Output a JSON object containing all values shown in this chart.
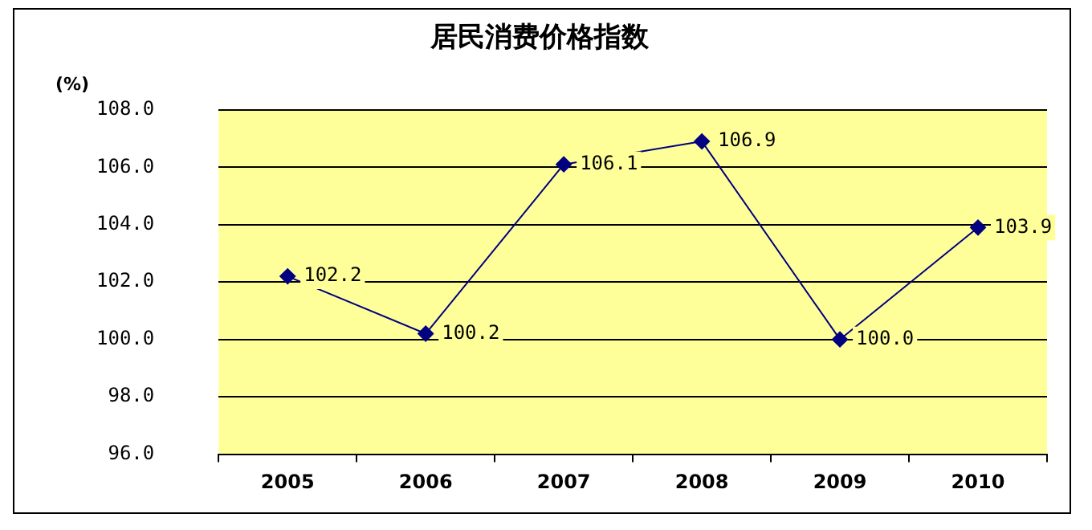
{
  "chart_data": {
    "type": "line",
    "title": "居民消费价格指数",
    "ylabel": "(%)",
    "categories": [
      "2005",
      "2006",
      "2007",
      "2008",
      "2009",
      "2010"
    ],
    "series": [
      {
        "color": "#000080",
        "values": [
          102.2,
          100.2,
          106.1,
          106.9,
          100.0,
          103.9
        ],
        "value_labels": [
          "102.2",
          "100.2",
          "106.1",
          "106.9",
          "100.0",
          "103.9"
        ]
      }
    ],
    "ylim": [
      96,
      108
    ],
    "yticks": [
      {
        "value": 96,
        "label": "96.0"
      },
      {
        "value": 98,
        "label": "98.0"
      },
      {
        "value": 100,
        "label": "100.0"
      },
      {
        "value": 102,
        "label": "102.0"
      },
      {
        "value": 104,
        "label": "104.0"
      },
      {
        "value": 106,
        "label": "106.0"
      },
      {
        "value": 108,
        "label": "108.0"
      }
    ],
    "grid": "y",
    "legend": false,
    "marker": "diamond",
    "line_style": "solid"
  }
}
